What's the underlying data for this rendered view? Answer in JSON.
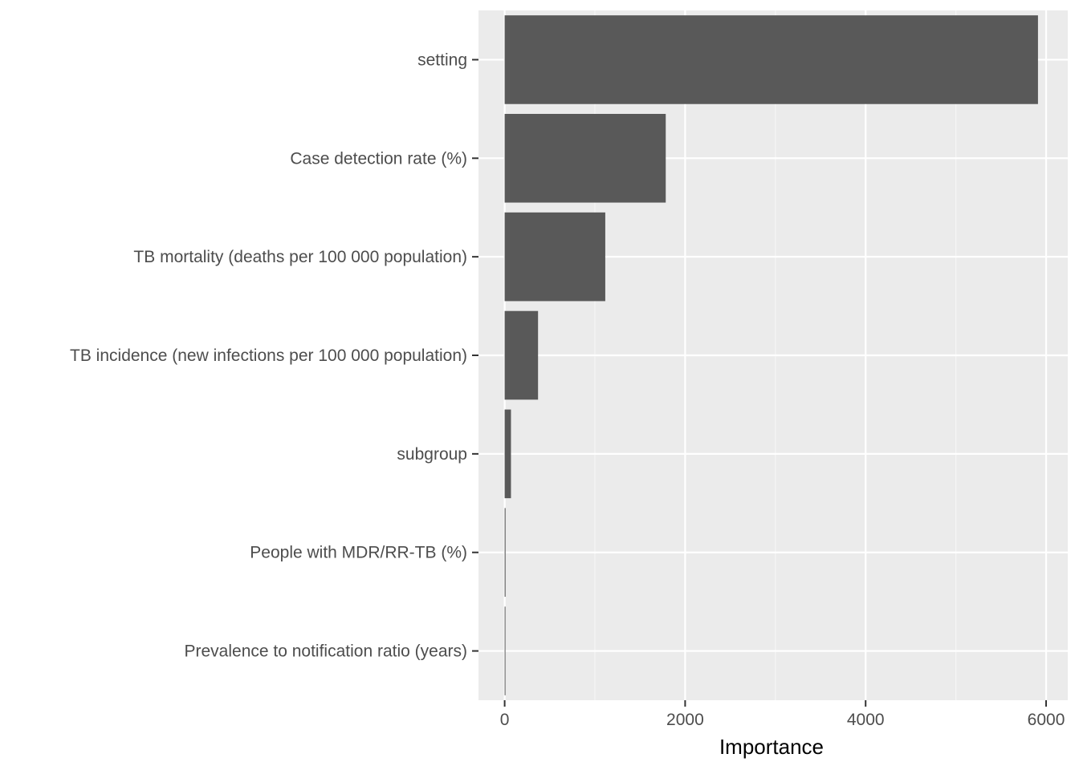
{
  "chart_data": {
    "type": "bar",
    "orientation": "horizontal",
    "categories": [
      "setting",
      "Case detection rate (%)",
      "TB mortality (deaths per 100 000 population)",
      "TB incidence (new infections per 100 000 population)",
      "subgroup",
      "People with MDR/RR-TB (%)",
      "Prevalence to notification ratio (years)"
    ],
    "values": [
      5910,
      1785,
      1115,
      370,
      70,
      10,
      5
    ],
    "title": "",
    "xlabel": "Importance",
    "ylabel": "",
    "xlim": [
      -290,
      6240
    ],
    "xticks": [
      0,
      2000,
      4000,
      6000
    ],
    "xtick_labels": [
      "0",
      "2000",
      "4000",
      "6000"
    ],
    "grid": true,
    "legend": "none",
    "colors": {
      "bar": "#595959",
      "panel": "#ebebeb",
      "grid_major": "#ffffff",
      "grid_minor": "#f5f5f5",
      "tick_text": "#4d4d4d",
      "tick_mark": "#333333"
    }
  }
}
